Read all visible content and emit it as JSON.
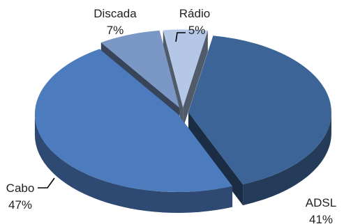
{
  "chart_data": {
    "type": "pie",
    "style": "3d-exploded",
    "labels": [
      "ADSL",
      "Cabo",
      "Discada",
      "Rádio"
    ],
    "values": [
      41,
      47,
      7,
      5
    ],
    "value_labels": [
      "41%",
      "47%",
      "7%",
      "5%"
    ],
    "colors": {
      "ADSL": "#3c6496",
      "Cabo": "#4d7cbe",
      "Discada": "#7b97c6",
      "Rádio": "#b4c7e6"
    },
    "title": "",
    "legend": "none"
  }
}
